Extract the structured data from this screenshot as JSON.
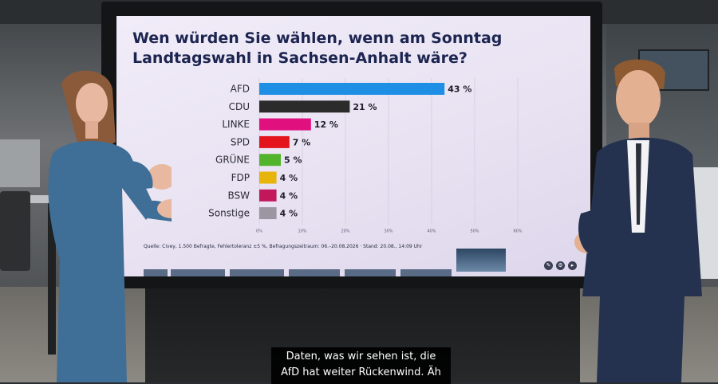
{
  "screen": {
    "title_line1": "Wen würden Sie wählen, wenn am Sonntag",
    "title_line2": "Landtagswahl in Sachsen-Anhalt wäre?",
    "source": "Quelle: Civey, 1.500 Befragte, Fehlertoleranz ±5 %, Befragungszeitraum: 06.–20.08.2026 · Stand: 20.08., 14:09 Uhr",
    "controls": [
      "pencil-icon",
      "gear-icon",
      "play-icon"
    ]
  },
  "chart_data": {
    "type": "bar",
    "orientation": "horizontal",
    "categories": [
      "AFD",
      "CDU",
      "LINKE",
      "SPD",
      "GRÜNE",
      "FDP",
      "BSW",
      "Sonstige"
    ],
    "values": [
      43,
      21,
      12,
      7,
      5,
      4,
      4,
      4
    ],
    "value_labels": [
      "43 %",
      "21 %",
      "12 %",
      "7 %",
      "5 %",
      "4 %",
      "4 %",
      "4 %"
    ],
    "colors": [
      "#1f8fe6",
      "#2b2b2b",
      "#e0117f",
      "#e3141b",
      "#52b32d",
      "#e6b40a",
      "#c2185b",
      "#9a97a3"
    ],
    "xticks": [
      "0%",
      "10%",
      "20%",
      "30%",
      "40%",
      "50%",
      "60%"
    ],
    "xlim": [
      0,
      60
    ],
    "grid": true,
    "title": "Wen würden Sie wählen, wenn am Sonntag Landtagswahl in Sachsen-Anhalt wäre?"
  },
  "caption": {
    "line1": "Daten, was wir sehen ist, die",
    "line2": "AfD hat weiter Rückenwind. Äh"
  }
}
